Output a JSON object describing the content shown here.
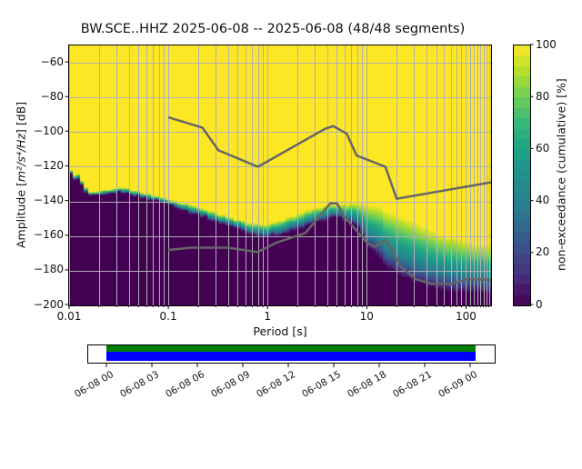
{
  "title": "BW.SCE..HHZ   2025-06-08 -- 2025-06-08  (48/48 segments)",
  "chart_data": {
    "type": "heatmap",
    "x_axis": {
      "label": "Period [s]",
      "scale": "log",
      "range": [
        0.01,
        179
      ],
      "major_ticks": [
        0.01,
        0.1,
        1,
        10,
        100
      ],
      "tick_labels": [
        "0.01",
        "0.1",
        "1",
        "10",
        "100"
      ]
    },
    "y_axis": {
      "label_prefix": "Amplitude [",
      "label_math": "m²/s⁴/Hz",
      "label_suffix": "] [dB]",
      "range": [
        -50,
        -200
      ],
      "ticks": [
        -60,
        -80,
        -100,
        -120,
        -140,
        -160,
        -180,
        -200
      ],
      "tick_labels": [
        "−60",
        "−80",
        "−100",
        "−120",
        "−140",
        "−160",
        "−180",
        "−200"
      ]
    },
    "colorbar": {
      "label": "non-exceedance (cumulative) [%]",
      "range": [
        0,
        100
      ],
      "ticks": [
        0,
        20,
        40,
        60,
        80,
        100
      ],
      "tick_labels": [
        "0",
        "20",
        "40",
        "60",
        "80",
        "100"
      ],
      "cmap": "viridis",
      "steps": 25
    },
    "viridis_stops": [
      "#440154",
      "#482878",
      "#3e4a89",
      "#31688e",
      "#26828e",
      "#21918c",
      "#1fa187",
      "#35b779",
      "#6ece58",
      "#b5de2b",
      "#fde725"
    ],
    "distribution": {
      "description": "Cumulative PPSD band per period: 0% (dark purple) below low_db, rising through viridis to 100% (yellow) above high_db",
      "period_bin_octaves": 0.125,
      "db_bin_width": 1,
      "periods": [
        0.01,
        0.011,
        0.0112,
        0.013,
        0.0132,
        0.0146,
        0.0148,
        0.017,
        0.022,
        0.028,
        0.035,
        0.045,
        0.06,
        0.08,
        0.1,
        0.15,
        0.22,
        0.3,
        0.45,
        0.65,
        0.9,
        1.2,
        1.6,
        2.2,
        3.0,
        4.0,
        5.0,
        6.0,
        7.0,
        8.0,
        9.0,
        10.5,
        13.0,
        16.0,
        20.0,
        26.0,
        34.0,
        45.0,
        60.0,
        85.0,
        120.0,
        179.0
      ],
      "low_db": [
        -124,
        -124.5,
        -127,
        -127.5,
        -130,
        -130.5,
        -136,
        -137,
        -136.8,
        -135.2,
        -135,
        -136.5,
        -138,
        -139.5,
        -141.5,
        -145.5,
        -148.5,
        -151.5,
        -155,
        -158.5,
        -160,
        -159.5,
        -158,
        -155.5,
        -152.5,
        -150,
        -149,
        -150.5,
        -152.5,
        -154,
        -160,
        -166.5,
        -172,
        -177.5,
        -181.5,
        -185,
        -187.5,
        -189.5,
        -191,
        -192,
        -192,
        -192.5
      ],
      "high_db": [
        -121.5,
        -122,
        -124.5,
        -125,
        -127.5,
        -128,
        -133.5,
        -134.5,
        -134.2,
        -132.7,
        -132.5,
        -134,
        -135.5,
        -137,
        -138.5,
        -141.5,
        -144,
        -146.5,
        -149.5,
        -152.5,
        -153.5,
        -152,
        -149.5,
        -146.5,
        -143.5,
        -142.5,
        -142,
        -141.5,
        -141.5,
        -141,
        -141,
        -141.5,
        -142.5,
        -145,
        -148,
        -150,
        -153,
        -156.5,
        -159,
        -161.5,
        -164,
        -166
      ]
    },
    "noise_models": {
      "nhnm": [
        [
          0.1,
          -91.5
        ],
        [
          0.22,
          -97.4
        ],
        [
          0.32,
          -110.5
        ],
        [
          0.8,
          -120.0
        ],
        [
          3.8,
          -98.1
        ],
        [
          4.6,
          -96.5
        ],
        [
          6.3,
          -101.0
        ],
        [
          7.9,
          -113.5
        ],
        [
          15.4,
          -120.0
        ],
        [
          20.0,
          -138.5
        ],
        [
          179,
          -129.0
        ]
      ],
      "nlnm": [
        [
          0.1,
          -168.0
        ],
        [
          0.17,
          -166.7
        ],
        [
          0.4,
          -166.7
        ],
        [
          0.8,
          -169.2
        ],
        [
          1.24,
          -163.7
        ],
        [
          2.4,
          -158.3
        ],
        [
          4.3,
          -141.1
        ],
        [
          5.0,
          -141.1
        ],
        [
          6.0,
          -149.0
        ],
        [
          10.0,
          -163.7
        ],
        [
          12.0,
          -166.2
        ],
        [
          15.6,
          -162.1
        ],
        [
          21.9,
          -177.5
        ],
        [
          31.6,
          -185.0
        ],
        [
          45.0,
          -187.5
        ],
        [
          70.0,
          -187.5
        ],
        [
          101.0,
          -185.0
        ],
        [
          154.0,
          -185.0
        ],
        [
          179.0,
          -185.5
        ]
      ]
    },
    "colors": {
      "grid": "#b0b0b8",
      "noise_line": "#666666",
      "background": "#ffffff",
      "spine": "#000000"
    }
  },
  "timeline": {
    "labels": [
      "06-08 00",
      "06-08 03",
      "06-08 06",
      "06-08 09",
      "06-08 12",
      "06-08 15",
      "06-08 18",
      "06-08 21",
      "06-09 00"
    ],
    "bar_top_color": "#008000",
    "bar_bottom_color": "#0000ff",
    "box_color": "#ffffff"
  }
}
